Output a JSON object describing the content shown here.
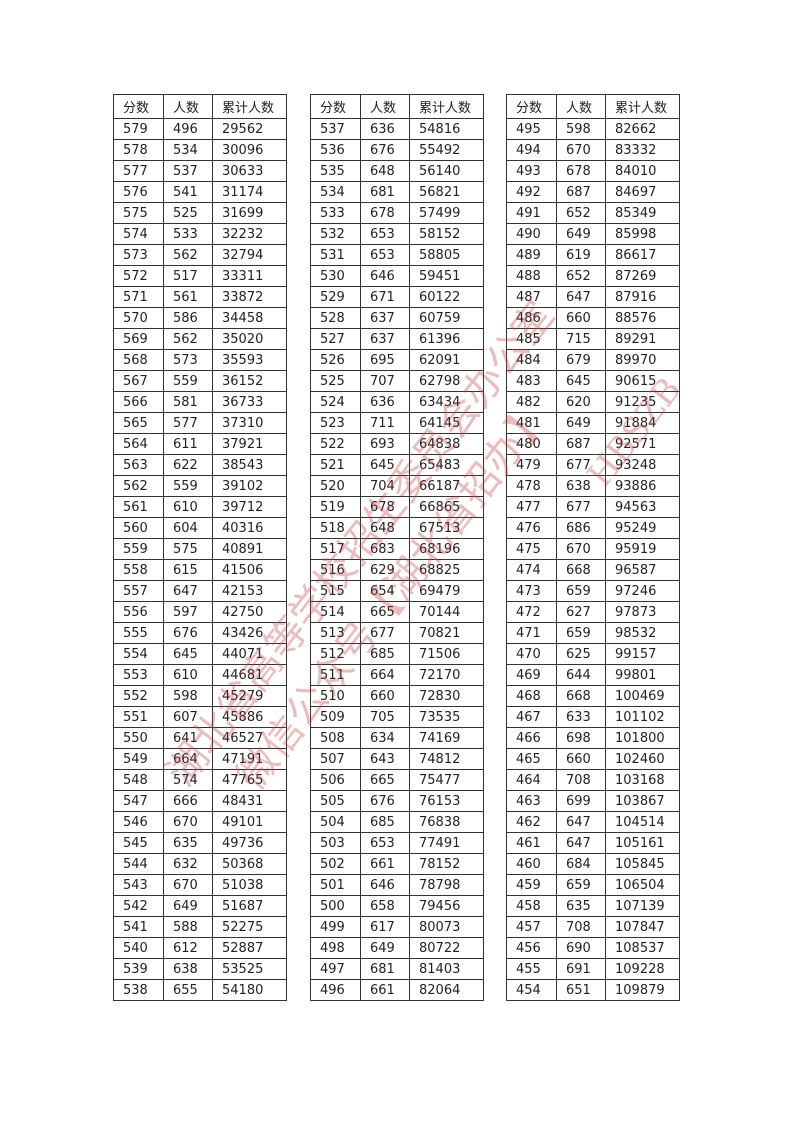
{
  "headers": [
    "分数",
    "人数",
    "累计人数"
  ],
  "watermark": {
    "lines": [
      "湖北省高等学校招生委员会办公室",
      "微信公众号【湖北省招办】",
      "HBSZB"
    ],
    "color": "#c83c3c"
  },
  "tables": [
    {
      "rows": [
        [
          "579",
          "496",
          "29562"
        ],
        [
          "578",
          "534",
          "30096"
        ],
        [
          "577",
          "537",
          "30633"
        ],
        [
          "576",
          "541",
          "31174"
        ],
        [
          "575",
          "525",
          "31699"
        ],
        [
          "574",
          "533",
          "32232"
        ],
        [
          "573",
          "562",
          "32794"
        ],
        [
          "572",
          "517",
          "33311"
        ],
        [
          "571",
          "561",
          "33872"
        ],
        [
          "570",
          "586",
          "34458"
        ],
        [
          "569",
          "562",
          "35020"
        ],
        [
          "568",
          "573",
          "35593"
        ],
        [
          "567",
          "559",
          "36152"
        ],
        [
          "566",
          "581",
          "36733"
        ],
        [
          "565",
          "577",
          "37310"
        ],
        [
          "564",
          "611",
          "37921"
        ],
        [
          "563",
          "622",
          "38543"
        ],
        [
          "562",
          "559",
          "39102"
        ],
        [
          "561",
          "610",
          "39712"
        ],
        [
          "560",
          "604",
          "40316"
        ],
        [
          "559",
          "575",
          "40891"
        ],
        [
          "558",
          "615",
          "41506"
        ],
        [
          "557",
          "647",
          "42153"
        ],
        [
          "556",
          "597",
          "42750"
        ],
        [
          "555",
          "676",
          "43426"
        ],
        [
          "554",
          "645",
          "44071"
        ],
        [
          "553",
          "610",
          "44681"
        ],
        [
          "552",
          "598",
          "45279"
        ],
        [
          "551",
          "607",
          "45886"
        ],
        [
          "550",
          "641",
          "46527"
        ],
        [
          "549",
          "664",
          "47191"
        ],
        [
          "548",
          "574",
          "47765"
        ],
        [
          "547",
          "666",
          "48431"
        ],
        [
          "546",
          "670",
          "49101"
        ],
        [
          "545",
          "635",
          "49736"
        ],
        [
          "544",
          "632",
          "50368"
        ],
        [
          "543",
          "670",
          "51038"
        ],
        [
          "542",
          "649",
          "51687"
        ],
        [
          "541",
          "588",
          "52275"
        ],
        [
          "540",
          "612",
          "52887"
        ],
        [
          "539",
          "638",
          "53525"
        ],
        [
          "538",
          "655",
          "54180"
        ]
      ]
    },
    {
      "rows": [
        [
          "537",
          "636",
          "54816"
        ],
        [
          "536",
          "676",
          "55492"
        ],
        [
          "535",
          "648",
          "56140"
        ],
        [
          "534",
          "681",
          "56821"
        ],
        [
          "533",
          "678",
          "57499"
        ],
        [
          "532",
          "653",
          "58152"
        ],
        [
          "531",
          "653",
          "58805"
        ],
        [
          "530",
          "646",
          "59451"
        ],
        [
          "529",
          "671",
          "60122"
        ],
        [
          "528",
          "637",
          "60759"
        ],
        [
          "527",
          "637",
          "61396"
        ],
        [
          "526",
          "695",
          "62091"
        ],
        [
          "525",
          "707",
          "62798"
        ],
        [
          "524",
          "636",
          "63434"
        ],
        [
          "523",
          "711",
          "64145"
        ],
        [
          "522",
          "693",
          "64838"
        ],
        [
          "521",
          "645",
          "65483"
        ],
        [
          "520",
          "704",
          "66187"
        ],
        [
          "519",
          "678",
          "66865"
        ],
        [
          "518",
          "648",
          "67513"
        ],
        [
          "517",
          "683",
          "68196"
        ],
        [
          "516",
          "629",
          "68825"
        ],
        [
          "515",
          "654",
          "69479"
        ],
        [
          "514",
          "665",
          "70144"
        ],
        [
          "513",
          "677",
          "70821"
        ],
        [
          "512",
          "685",
          "71506"
        ],
        [
          "511",
          "664",
          "72170"
        ],
        [
          "510",
          "660",
          "72830"
        ],
        [
          "509",
          "705",
          "73535"
        ],
        [
          "508",
          "634",
          "74169"
        ],
        [
          "507",
          "643",
          "74812"
        ],
        [
          "506",
          "665",
          "75477"
        ],
        [
          "505",
          "676",
          "76153"
        ],
        [
          "504",
          "685",
          "76838"
        ],
        [
          "503",
          "653",
          "77491"
        ],
        [
          "502",
          "661",
          "78152"
        ],
        [
          "501",
          "646",
          "78798"
        ],
        [
          "500",
          "658",
          "79456"
        ],
        [
          "499",
          "617",
          "80073"
        ],
        [
          "498",
          "649",
          "80722"
        ],
        [
          "497",
          "681",
          "81403"
        ],
        [
          "496",
          "661",
          "82064"
        ]
      ]
    },
    {
      "rows": [
        [
          "495",
          "598",
          "82662"
        ],
        [
          "494",
          "670",
          "83332"
        ],
        [
          "493",
          "678",
          "84010"
        ],
        [
          "492",
          "687",
          "84697"
        ],
        [
          "491",
          "652",
          "85349"
        ],
        [
          "490",
          "649",
          "85998"
        ],
        [
          "489",
          "619",
          "86617"
        ],
        [
          "488",
          "652",
          "87269"
        ],
        [
          "487",
          "647",
          "87916"
        ],
        [
          "486",
          "660",
          "88576"
        ],
        [
          "485",
          "715",
          "89291"
        ],
        [
          "484",
          "679",
          "89970"
        ],
        [
          "483",
          "645",
          "90615"
        ],
        [
          "482",
          "620",
          "91235"
        ],
        [
          "481",
          "649",
          "91884"
        ],
        [
          "480",
          "687",
          "92571"
        ],
        [
          "479",
          "677",
          "93248"
        ],
        [
          "478",
          "638",
          "93886"
        ],
        [
          "477",
          "677",
          "94563"
        ],
        [
          "476",
          "686",
          "95249"
        ],
        [
          "475",
          "670",
          "95919"
        ],
        [
          "474",
          "668",
          "96587"
        ],
        [
          "473",
          "659",
          "97246"
        ],
        [
          "472",
          "627",
          "97873"
        ],
        [
          "471",
          "659",
          "98532"
        ],
        [
          "470",
          "625",
          "99157"
        ],
        [
          "469",
          "644",
          "99801"
        ],
        [
          "468",
          "668",
          "100469"
        ],
        [
          "467",
          "633",
          "101102"
        ],
        [
          "466",
          "698",
          "101800"
        ],
        [
          "465",
          "660",
          "102460"
        ],
        [
          "464",
          "708",
          "103168"
        ],
        [
          "463",
          "699",
          "103867"
        ],
        [
          "462",
          "647",
          "104514"
        ],
        [
          "461",
          "647",
          "105161"
        ],
        [
          "460",
          "684",
          "105845"
        ],
        [
          "459",
          "659",
          "106504"
        ],
        [
          "458",
          "635",
          "107139"
        ],
        [
          "457",
          "708",
          "107847"
        ],
        [
          "456",
          "690",
          "108537"
        ],
        [
          "455",
          "691",
          "109228"
        ],
        [
          "454",
          "651",
          "109879"
        ]
      ]
    }
  ]
}
